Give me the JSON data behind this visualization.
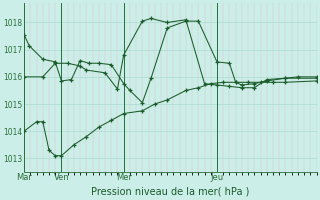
{
  "background_color": "#cceee8",
  "line_color": "#1a5c2a",
  "xlabel": "Pression niveau de la mer( hPa )",
  "xlabel_color": "#1a5c2a",
  "tick_color": "#2a6e3a",
  "ylim": [
    1012.5,
    1018.7
  ],
  "yticks": [
    1013,
    1014,
    1015,
    1016,
    1017,
    1018
  ],
  "day_labels": [
    "Mar",
    "Ven",
    "Mer",
    "Jeu"
  ],
  "vline_color": "#2a6e3a",
  "series1_x": [
    0,
    0.4,
    1.5,
    2.5,
    3.0,
    3.8,
    4.5,
    5.2,
    6.0,
    7.0,
    8.0,
    8.5,
    9.5,
    10.2,
    11.5,
    13.0,
    14.0,
    15.5,
    16.5,
    17.0,
    17.5,
    18.5,
    19.5,
    21.0,
    22.0,
    23.5
  ],
  "series1_y": [
    1017.55,
    1017.15,
    1016.65,
    1016.55,
    1015.85,
    1015.9,
    1016.6,
    1016.5,
    1016.5,
    1016.45,
    1015.75,
    1015.5,
    1015.05,
    1015.95,
    1017.8,
    1018.05,
    1018.05,
    1016.55,
    1016.5,
    1015.8,
    1015.7,
    1015.75,
    1015.85,
    1015.95,
    1016.0,
    1016.0
  ],
  "series2_x": [
    0.0,
    1.5,
    2.5,
    3.5,
    4.5,
    5.0,
    6.5,
    7.5,
    8.0,
    9.5,
    10.2,
    11.5,
    13.0,
    14.5,
    15.5,
    16.5,
    17.5,
    18.5,
    19.5,
    21.0,
    23.5
  ],
  "series2_y": [
    1016.0,
    1016.0,
    1016.5,
    1016.5,
    1016.4,
    1016.25,
    1016.15,
    1015.55,
    1016.8,
    1018.05,
    1018.15,
    1018.0,
    1018.1,
    1015.75,
    1015.7,
    1015.65,
    1015.6,
    1015.6,
    1015.9,
    1015.95,
    1015.95
  ],
  "series3_x": [
    0.0,
    1.0,
    1.5,
    2.0,
    2.5,
    3.0,
    4.0,
    5.0,
    6.0,
    7.0,
    8.0,
    9.5,
    10.5,
    11.5,
    13.0,
    14.0,
    15.0,
    16.0,
    17.0,
    18.0,
    19.0,
    20.0,
    21.0,
    23.5
  ],
  "series3_y": [
    1014.0,
    1014.35,
    1014.35,
    1013.3,
    1013.1,
    1013.1,
    1013.5,
    1013.8,
    1014.15,
    1014.4,
    1014.65,
    1014.75,
    1015.0,
    1015.15,
    1015.5,
    1015.6,
    1015.75,
    1015.8,
    1015.8,
    1015.8,
    1015.8,
    1015.8,
    1015.8,
    1015.85
  ],
  "xlim": [
    0,
    23.5
  ],
  "vlines_x": [
    0.0,
    3.0,
    8.0,
    15.5
  ]
}
